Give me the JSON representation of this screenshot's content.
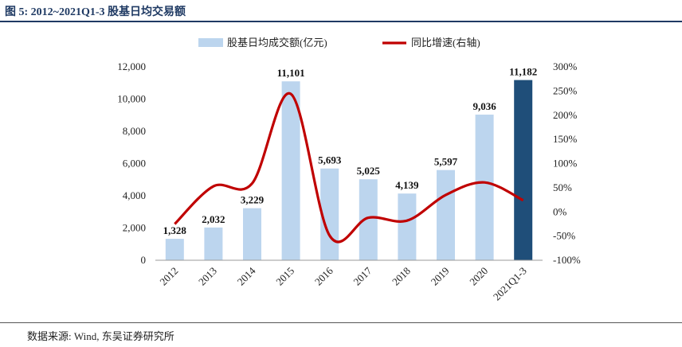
{
  "figure_title": "图 5:  2012~2021Q1-3 股基日均交易额",
  "source_note": "数据来源: Wind, 东吴证券研究所",
  "colors": {
    "bar": "#bcd5ee",
    "bar_highlight": "#1f4e79",
    "line": "#c00000",
    "title": "#1f3a63"
  },
  "chart_data": {
    "type": "bar",
    "categories": [
      "2012",
      "2013",
      "2014",
      "2015",
      "2016",
      "2017",
      "2018",
      "2019",
      "2020",
      "2021Q1-3"
    ],
    "series": [
      {
        "name": "股基日均成交额(亿元)",
        "type": "bar",
        "axis": "left",
        "values": [
          1328,
          2032,
          3229,
          11101,
          5693,
          5025,
          4139,
          5597,
          9036,
          11182
        ],
        "labels": [
          "1,328",
          "2,032",
          "3,229",
          "11,101",
          "5,693",
          "5,025",
          "4,139",
          "5,597",
          "9,036",
          "11,182"
        ]
      },
      {
        "name": "同比增速(右轴)",
        "type": "line",
        "axis": "right",
        "values": [
          -0.25,
          0.53,
          0.59,
          2.44,
          -0.49,
          -0.12,
          -0.18,
          0.35,
          0.61,
          0.24
        ]
      }
    ],
    "left_axis": {
      "min": 0,
      "max": 12000,
      "ticks": [
        "0",
        "2,000",
        "4,000",
        "6,000",
        "8,000",
        "10,000",
        "12,000"
      ]
    },
    "right_axis": {
      "min": -1.0,
      "max": 3.0,
      "ticks": [
        "-100%",
        "-50%",
        "0%",
        "50%",
        "100%",
        "150%",
        "200%",
        "250%",
        "300%"
      ]
    },
    "legend_position": "top-center",
    "grid": false
  }
}
